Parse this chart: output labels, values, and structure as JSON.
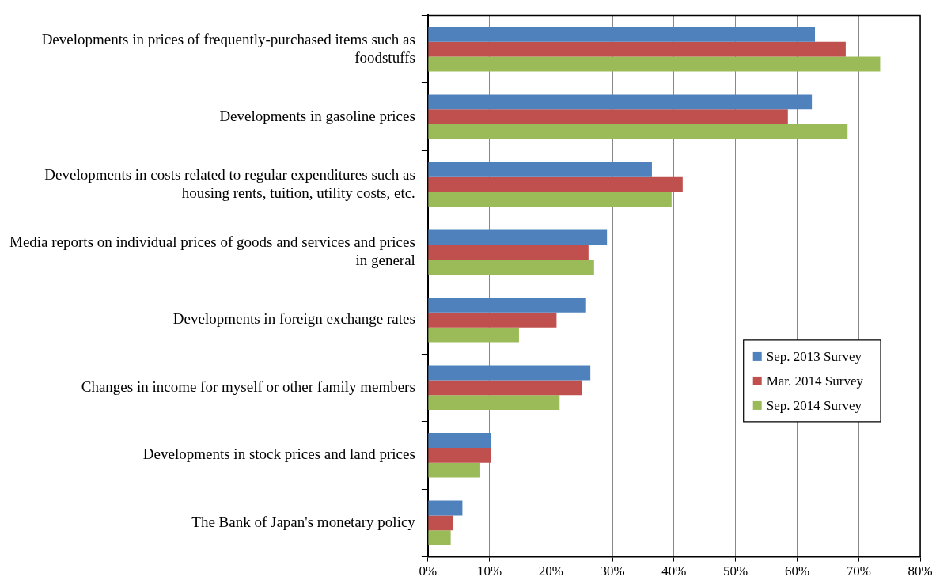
{
  "chart_data": {
    "type": "bar",
    "orientation": "horizontal",
    "categories": [
      "Developments in prices of frequently-purchased items such as foodstuffs",
      "Developments in gasoline prices",
      "Developments in costs related to regular expenditures such as housing rents, tuition, utility costs, etc.",
      "Media reports on individual prices of goods and services and prices in general",
      "Developments in foreign exchange rates",
      "Changes in income for myself or other family members",
      "Developments in stock prices and land prices",
      "The Bank of Japan's monetary policy"
    ],
    "series": [
      {
        "name": "Sep. 2013 Survey",
        "color": "#4f81bd",
        "values": [
          62.9,
          62.4,
          36.4,
          29.1,
          25.7,
          26.4,
          10.2,
          5.6
        ]
      },
      {
        "name": "Mar. 2014 Survey",
        "color": "#c0504d",
        "values": [
          67.9,
          58.5,
          41.4,
          26.1,
          20.9,
          25.0,
          10.2,
          4.1
        ]
      },
      {
        "name": "Sep. 2014 Survey",
        "color": "#9bbb59",
        "values": [
          73.5,
          68.2,
          39.6,
          27.0,
          14.8,
          21.4,
          8.5,
          3.7
        ]
      }
    ],
    "xlim": [
      0,
      80
    ],
    "xticks": [
      {
        "value": 0,
        "label": "0%"
      },
      {
        "value": 10,
        "label": "10%"
      },
      {
        "value": 20,
        "label": "20%"
      },
      {
        "value": 30,
        "label": "30%"
      },
      {
        "value": 40,
        "label": "40%"
      },
      {
        "value": 50,
        "label": "50%"
      },
      {
        "value": 60,
        "label": "60%"
      },
      {
        "value": 70,
        "label": "70%"
      },
      {
        "value": 80,
        "label": "80%"
      }
    ],
    "grid": "x",
    "legend": "right"
  }
}
